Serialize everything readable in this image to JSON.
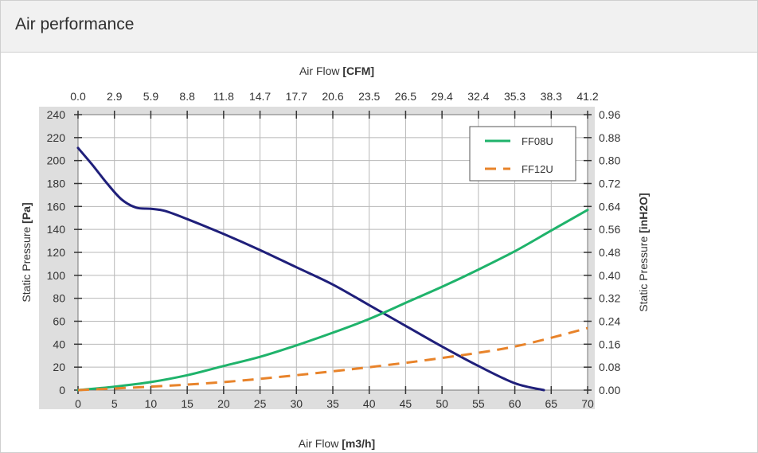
{
  "header": {
    "title": "Air performance"
  },
  "chart_data": {
    "type": "line",
    "title": "",
    "x_bottom": {
      "label": "Air Flow",
      "unit": "[m3/h]",
      "range": [
        0,
        70
      ],
      "ticks": [
        "0",
        "5",
        "10",
        "15",
        "20",
        "25",
        "30",
        "35",
        "40",
        "45",
        "50",
        "55",
        "60",
        "65",
        "70"
      ]
    },
    "x_top": {
      "label": "Air Flow",
      "unit": "[CFM]",
      "range": [
        0,
        41.2
      ],
      "ticks": [
        "0.0",
        "2.9",
        "5.9",
        "8.8",
        "11.8",
        "14.7",
        "17.7",
        "20.6",
        "23.5",
        "26.5",
        "29.4",
        "32.4",
        "35.3",
        "38.3",
        "41.2"
      ]
    },
    "y_left": {
      "label": "Static Pressure",
      "unit": "[Pa]",
      "range": [
        0,
        240
      ],
      "ticks": [
        "0",
        "20",
        "40",
        "60",
        "80",
        "100",
        "120",
        "140",
        "160",
        "180",
        "200",
        "220",
        "240"
      ]
    },
    "y_right": {
      "label": "Static Pressure",
      "unit": "[inH2O]",
      "range": [
        0,
        0.96
      ],
      "ticks": [
        "0.00",
        "0.08",
        "0.16",
        "0.24",
        "0.32",
        "0.40",
        "0.48",
        "0.56",
        "0.64",
        "0.72",
        "0.80",
        "0.88",
        "0.96"
      ]
    },
    "grid": true,
    "legend": {
      "placement": "top-right"
    },
    "series": [
      {
        "name": "",
        "color": "#1f1f7a",
        "style": "solid",
        "x": [
          0,
          2,
          4,
          6,
          8,
          10,
          12,
          15,
          20,
          25,
          30,
          35,
          40,
          45,
          50,
          55,
          60,
          64
        ],
        "y": [
          211,
          196,
          180,
          166,
          159,
          158,
          156,
          149,
          136,
          122,
          107,
          92,
          74,
          56,
          38,
          21,
          6,
          0
        ]
      },
      {
        "name": "FF08U",
        "color": "#1fb36b",
        "style": "solid",
        "x": [
          0,
          5,
          10,
          15,
          20,
          25,
          30,
          35,
          40,
          45,
          50,
          55,
          60,
          65,
          70
        ],
        "y": [
          0,
          3,
          7,
          13,
          21,
          29,
          39,
          50,
          62,
          76,
          90,
          105,
          121,
          139,
          157
        ]
      },
      {
        "name": "FF12U",
        "color": "#e8832a",
        "style": "dashed",
        "x": [
          0,
          10,
          20,
          30,
          40,
          50,
          60,
          70
        ],
        "y": [
          0,
          3,
          7,
          13,
          20,
          28,
          38,
          54
        ]
      }
    ]
  }
}
